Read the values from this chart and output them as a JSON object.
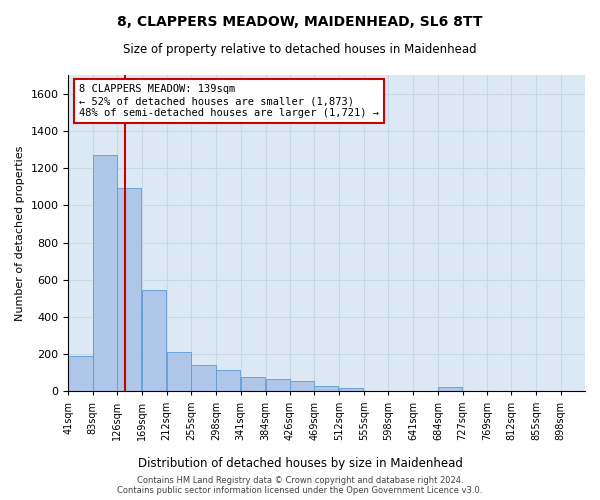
{
  "title": "8, CLAPPERS MEADOW, MAIDENHEAD, SL6 8TT",
  "subtitle": "Size of property relative to detached houses in Maidenhead",
  "xlabel": "Distribution of detached houses by size in Maidenhead",
  "ylabel": "Number of detached properties",
  "footer_line1": "Contains HM Land Registry data © Crown copyright and database right 2024.",
  "footer_line2": "Contains public sector information licensed under the Open Government Licence v3.0.",
  "annotation_line1": "8 CLAPPERS MEADOW: 139sqm",
  "annotation_line2": "← 52% of detached houses are smaller (1,873)",
  "annotation_line3": "48% of semi-detached houses are larger (1,721) →",
  "bar_color": "#aec6e8",
  "bar_edge_color": "#5b9bd5",
  "grid_color": "#c8d8e8",
  "background_color": "#dce9f5",
  "red_line_color": "#cc0000",
  "annotation_box_edge_color": "#cc0000",
  "annotation_box_face_color": "#ffffff",
  "bins": [
    41,
    83,
    126,
    169,
    212,
    255,
    298,
    341,
    384,
    426,
    469,
    512,
    555,
    598,
    641,
    684,
    727,
    769,
    812,
    855,
    898
  ],
  "bin_labels": [
    "41sqm",
    "83sqm",
    "126sqm",
    "169sqm",
    "212sqm",
    "255sqm",
    "298sqm",
    "341sqm",
    "384sqm",
    "426sqm",
    "469sqm",
    "512sqm",
    "555sqm",
    "598sqm",
    "641sqm",
    "684sqm",
    "727sqm",
    "769sqm",
    "812sqm",
    "855sqm",
    "898sqm"
  ],
  "counts": [
    193,
    1270,
    1095,
    545,
    210,
    140,
    115,
    80,
    65,
    55,
    30,
    20,
    5,
    0,
    0,
    22,
    0,
    0,
    0,
    0,
    0
  ],
  "red_line_x": 139,
  "ylim": [
    0,
    1700
  ],
  "yticks": [
    0,
    200,
    400,
    600,
    800,
    1000,
    1200,
    1400,
    1600
  ],
  "figwidth": 6.0,
  "figheight": 5.0,
  "dpi": 100
}
